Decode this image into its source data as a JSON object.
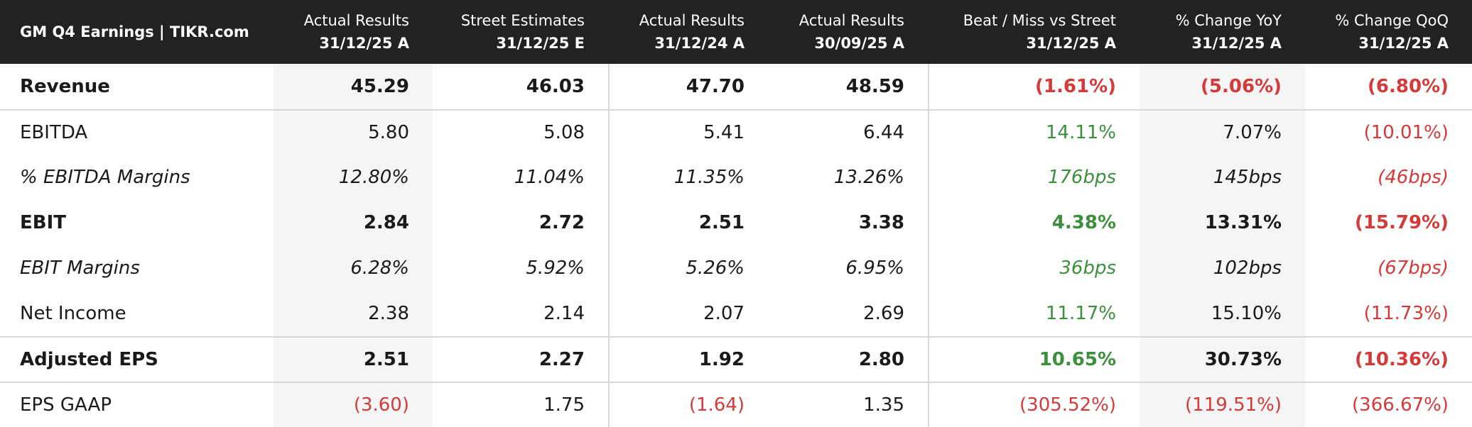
{
  "header": {
    "title": "GM Q4 Earnings | TIKR.com"
  },
  "columns": [
    {
      "line1": "Actual Results",
      "line2": "31/12/25 A"
    },
    {
      "line1": "Street Estimates",
      "line2": "31/12/25 E"
    },
    {
      "line1": "Actual Results",
      "line2": "31/12/24 A"
    },
    {
      "line1": "Actual Results",
      "line2": "30/09/25 A"
    },
    {
      "line1": "Beat / Miss vs Street",
      "line2": "31/12/25 A"
    },
    {
      "line1": "% Change YoY",
      "line2": "31/12/25 A"
    },
    {
      "line1": "% Change QoQ",
      "line2": "31/12/25 A"
    }
  ],
  "rows": [
    {
      "label": "Revenue",
      "style": "bold",
      "cells": [
        "45.29",
        "46.03",
        "47.70",
        "48.59",
        "(1.61%)",
        "(5.06%)",
        "(6.80%)"
      ],
      "colors": [
        "#1a1a1a",
        "#1a1a1a",
        "#1a1a1a",
        "#1a1a1a",
        "#d33a3a",
        "#d33a3a",
        "#d33a3a"
      ]
    },
    {
      "label": "EBITDA",
      "style": "normal",
      "cells": [
        "5.80",
        "5.08",
        "5.41",
        "6.44",
        "14.11%",
        "7.07%",
        "(10.01%)"
      ],
      "colors": [
        "#1a1a1a",
        "#1a1a1a",
        "#1a1a1a",
        "#1a1a1a",
        "#3d8f3d",
        "#1a1a1a",
        "#d33a3a"
      ]
    },
    {
      "label": "% EBITDA Margins",
      "style": "italic",
      "cells": [
        "12.80%",
        "11.04%",
        "11.35%",
        "13.26%",
        "176bps",
        "145bps",
        "(46bps)"
      ],
      "colors": [
        "#1a1a1a",
        "#1a1a1a",
        "#1a1a1a",
        "#1a1a1a",
        "#3d8f3d",
        "#1a1a1a",
        "#d33a3a"
      ]
    },
    {
      "label": "EBIT",
      "style": "bold",
      "cells": [
        "2.84",
        "2.72",
        "2.51",
        "3.38",
        "4.38%",
        "13.31%",
        "(15.79%)"
      ],
      "colors": [
        "#1a1a1a",
        "#1a1a1a",
        "#1a1a1a",
        "#1a1a1a",
        "#3d8f3d",
        "#1a1a1a",
        "#d33a3a"
      ]
    },
    {
      "label": "EBIT Margins",
      "style": "italic",
      "cells": [
        "6.28%",
        "5.92%",
        "5.26%",
        "6.95%",
        "36bps",
        "102bps",
        "(67bps)"
      ],
      "colors": [
        "#1a1a1a",
        "#1a1a1a",
        "#1a1a1a",
        "#1a1a1a",
        "#3d8f3d",
        "#1a1a1a",
        "#d33a3a"
      ]
    },
    {
      "label": "Net Income",
      "style": "normal",
      "cells": [
        "2.38",
        "2.14",
        "2.07",
        "2.69",
        "11.17%",
        "15.10%",
        "(11.73%)"
      ],
      "colors": [
        "#1a1a1a",
        "#1a1a1a",
        "#1a1a1a",
        "#1a1a1a",
        "#3d8f3d",
        "#1a1a1a",
        "#d33a3a"
      ]
    },
    {
      "label": "Adjusted EPS",
      "style": "bold",
      "cells": [
        "2.51",
        "2.27",
        "1.92",
        "2.80",
        "10.65%",
        "30.73%",
        "(10.36%)"
      ],
      "colors": [
        "#1a1a1a",
        "#1a1a1a",
        "#1a1a1a",
        "#1a1a1a",
        "#3d8f3d",
        "#1a1a1a",
        "#d33a3a"
      ]
    },
    {
      "label": "EPS GAAP",
      "style": "normal",
      "cells": [
        "(3.60)",
        "1.75",
        "(1.64)",
        "1.35",
        "(305.52%)",
        "(119.51%)",
        "(366.67%)"
      ],
      "colors": [
        "#d33a3a",
        "#1a1a1a",
        "#d33a3a",
        "#1a1a1a",
        "#d33a3a",
        "#d33a3a",
        "#d33a3a"
      ]
    }
  ]
}
